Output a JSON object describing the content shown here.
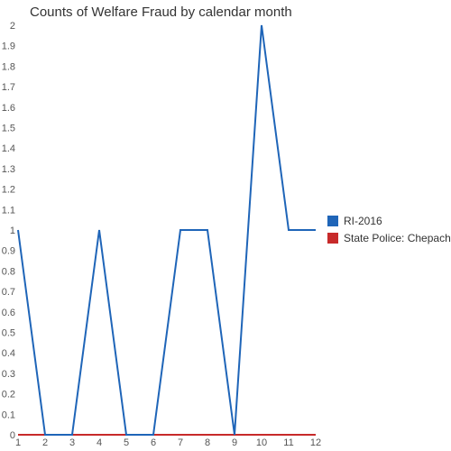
{
  "chart_data": {
    "type": "line",
    "title": "Counts of Welfare Fraud by calendar month",
    "xlabel": "",
    "ylabel": "",
    "x": [
      1,
      2,
      3,
      4,
      5,
      6,
      7,
      8,
      9,
      10,
      11,
      12
    ],
    "xlim": [
      1,
      12
    ],
    "ylim": [
      0,
      2
    ],
    "yticks": [
      "0",
      "0.1",
      "0.2",
      "0.3",
      "0.4",
      "0.5",
      "0.6",
      "0.7",
      "0.8",
      "0.9",
      "1",
      "1.1",
      "1.2",
      "1.3",
      "1.4",
      "1.5",
      "1.6",
      "1.7",
      "1.8",
      "1.9",
      "2"
    ],
    "xticks": [
      "1",
      "2",
      "3",
      "4",
      "5",
      "6",
      "7",
      "8",
      "9",
      "10",
      "11",
      "12"
    ],
    "grid": false,
    "legend_position": "right",
    "series": [
      {
        "name": "RI-2016",
        "color": "#1f65b8",
        "values": [
          1,
          0,
          0,
          1,
          0,
          0,
          1,
          1,
          0,
          2,
          1,
          1
        ]
      },
      {
        "name": "State Police: Chepachet",
        "color": "#c72a2a",
        "values": [
          0,
          0,
          0,
          0,
          0,
          0,
          0,
          0,
          0,
          0,
          0,
          0
        ]
      }
    ]
  }
}
